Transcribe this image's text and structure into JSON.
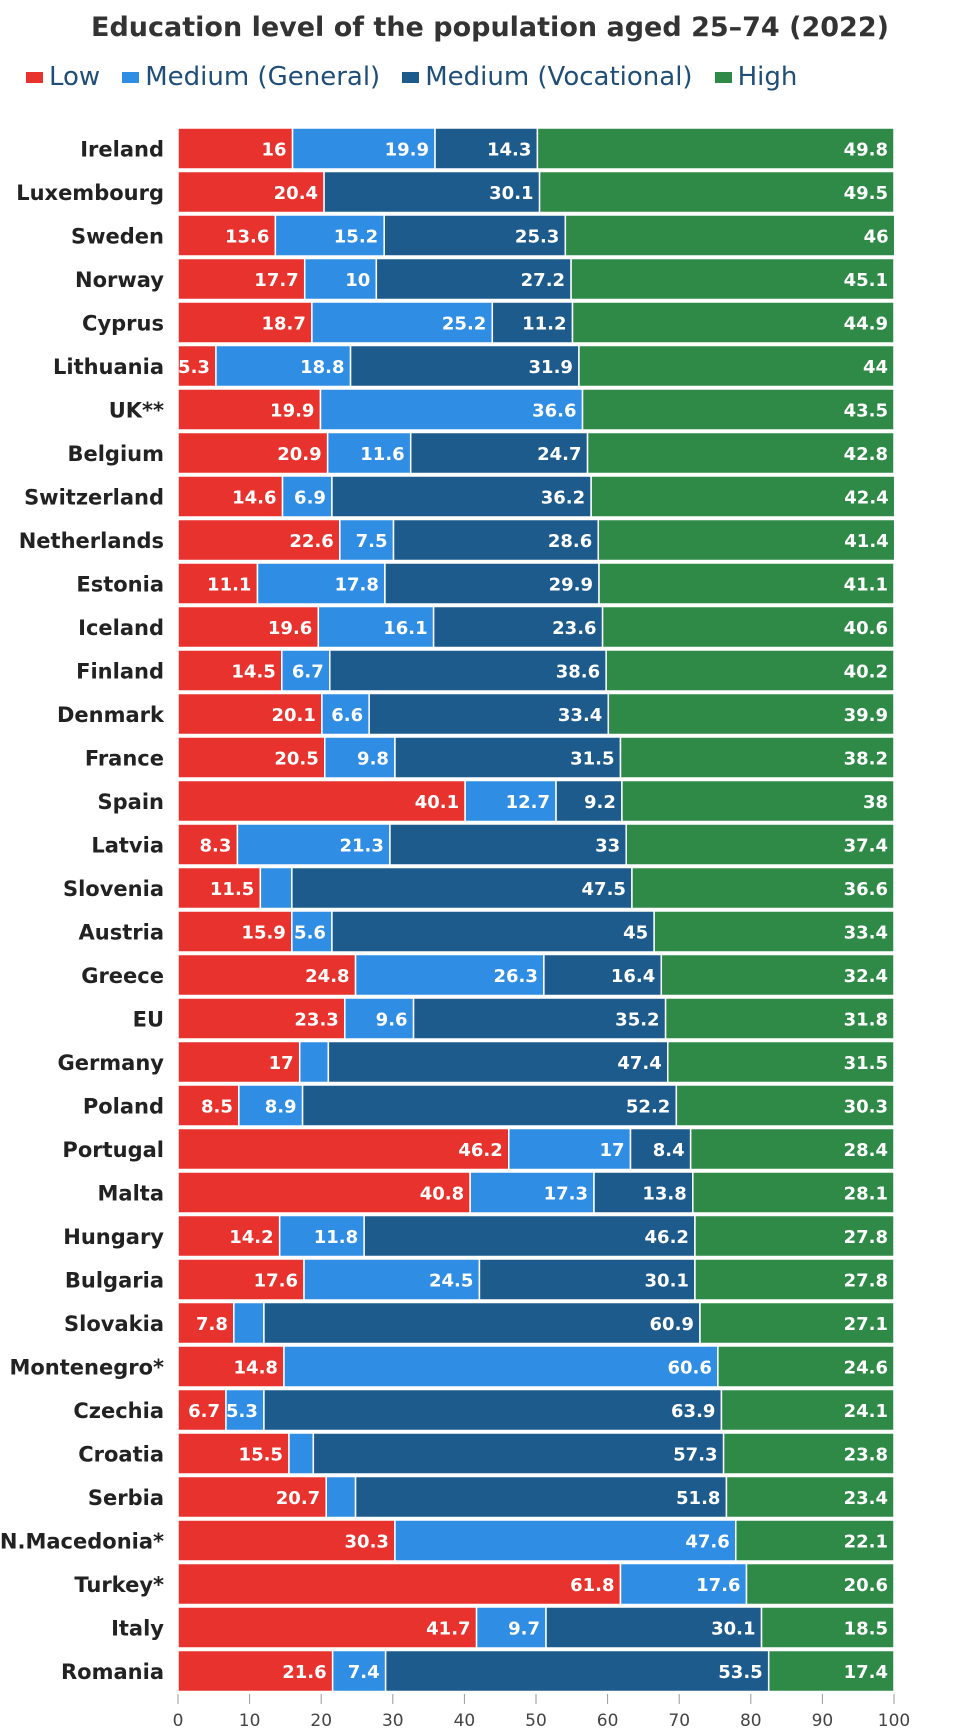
{
  "title": "Education level of the population aged 25–74 (2022)",
  "legend": [
    {
      "label": "Low",
      "color": "#e8322d"
    },
    {
      "label": "Medium (General)",
      "color": "#2f8de4"
    },
    {
      "label": "Medium (Vocational)",
      "color": "#1d5b8c"
    },
    {
      "label": "High",
      "color": "#2e8a46"
    }
  ],
  "chart_data": {
    "type": "bar",
    "orientation": "horizontal",
    "stacked": true,
    "title": "Education level of the population aged 25–74 (2022)",
    "xlim": [
      0,
      100
    ],
    "x_ticks": [
      0,
      10,
      20,
      30,
      40,
      50,
      60,
      70,
      80,
      90,
      100
    ],
    "legend_position": "top-left",
    "categories": [
      "Ireland",
      "Luxembourg",
      "Sweden",
      "Norway",
      "Cyprus",
      "Lithuania",
      "UK**",
      "Belgium",
      "Switzerland",
      "Netherlands",
      "Estonia",
      "Iceland",
      "Finland",
      "Denmark",
      "France",
      "Spain",
      "Latvia",
      "Slovenia",
      "Austria",
      "Greece",
      "EU",
      "Germany",
      "Poland",
      "Portugal",
      "Malta",
      "Hungary",
      "Bulgaria",
      "Slovakia",
      "Montenegro*",
      "Czechia",
      "Croatia",
      "Serbia",
      "N.Macedonia*",
      "Turkey*",
      "Italy",
      "Romania"
    ],
    "series": [
      {
        "name": "Low",
        "color": "#e8322d",
        "values": [
          16,
          20.4,
          13.6,
          17.7,
          18.7,
          5.3,
          19.9,
          20.9,
          14.6,
          22.6,
          11.1,
          19.6,
          14.5,
          20.1,
          20.5,
          40.1,
          8.3,
          11.5,
          15.9,
          24.8,
          23.3,
          17,
          8.5,
          46.2,
          40.8,
          14.2,
          17.6,
          7.8,
          14.8,
          6.7,
          15.5,
          20.7,
          30.3,
          61.8,
          41.7,
          21.6
        ]
      },
      {
        "name": "Medium (General)",
        "color": "#2f8de4",
        "values": [
          19.9,
          0,
          15.2,
          10,
          25.2,
          18.8,
          36.6,
          11.6,
          6.9,
          7.5,
          17.8,
          16.1,
          6.7,
          6.6,
          9.8,
          12.7,
          21.3,
          4.4,
          5.6,
          26.3,
          9.6,
          4,
          8.9,
          17,
          17.3,
          11.8,
          24.5,
          4.2,
          60.6,
          5.3,
          3.4,
          4.1,
          47.6,
          17.6,
          9.7,
          7.4
        ],
        "labels": [
          "19.9",
          "",
          "15.2",
          "10",
          "25.2",
          "18.8",
          "36.6",
          "11.6",
          "6.9",
          "7.5",
          "17.8",
          "16.1",
          "6.7",
          "6.6",
          "9.8",
          "12.7",
          "21.3",
          "",
          "5.6",
          "26.3",
          "9.6",
          "",
          "8.9",
          "17",
          "17.3",
          "11.8",
          "24.5",
          "",
          "60.6",
          "5.3",
          "",
          "",
          "47.6",
          "17.6",
          "9.7",
          "7.4"
        ]
      },
      {
        "name": "Medium (Vocational)",
        "color": "#1d5b8c",
        "values": [
          14.3,
          30.1,
          25.3,
          27.2,
          11.2,
          31.9,
          0,
          24.7,
          36.2,
          28.6,
          29.9,
          23.6,
          38.6,
          33.4,
          31.5,
          9.2,
          33,
          47.5,
          45,
          16.4,
          35.2,
          47.4,
          52.2,
          8.4,
          13.8,
          46.2,
          30.1,
          60.9,
          0,
          63.9,
          57.3,
          51.8,
          0,
          0,
          30.1,
          53.5
        ],
        "labels": [
          "14.3",
          "30.1",
          "25.3",
          "27.2",
          "11.2",
          "31.9",
          "",
          "24.7",
          "36.2",
          "28.6",
          "29.9",
          "23.6",
          "38.6",
          "33.4",
          "31.5",
          "9.2",
          "33",
          "47.5",
          "45",
          "16.4",
          "35.2",
          "47.4",
          "52.2",
          "8.4",
          "13.8",
          "46.2",
          "30.1",
          "60.9",
          "",
          "63.9",
          "57.3",
          "51.8",
          "",
          "",
          "30.1",
          "53.5"
        ]
      },
      {
        "name": "High",
        "color": "#2e8a46",
        "values": [
          49.8,
          49.5,
          46,
          45.1,
          44.9,
          44,
          43.5,
          42.8,
          42.4,
          41.4,
          41.1,
          40.6,
          40.2,
          39.9,
          38.2,
          38,
          37.4,
          36.6,
          33.4,
          32.4,
          31.8,
          31.5,
          30.3,
          28.4,
          28.1,
          27.8,
          27.8,
          27.1,
          24.6,
          24.1,
          23.8,
          23.4,
          22.1,
          20.6,
          18.5,
          17.4
        ]
      }
    ]
  }
}
